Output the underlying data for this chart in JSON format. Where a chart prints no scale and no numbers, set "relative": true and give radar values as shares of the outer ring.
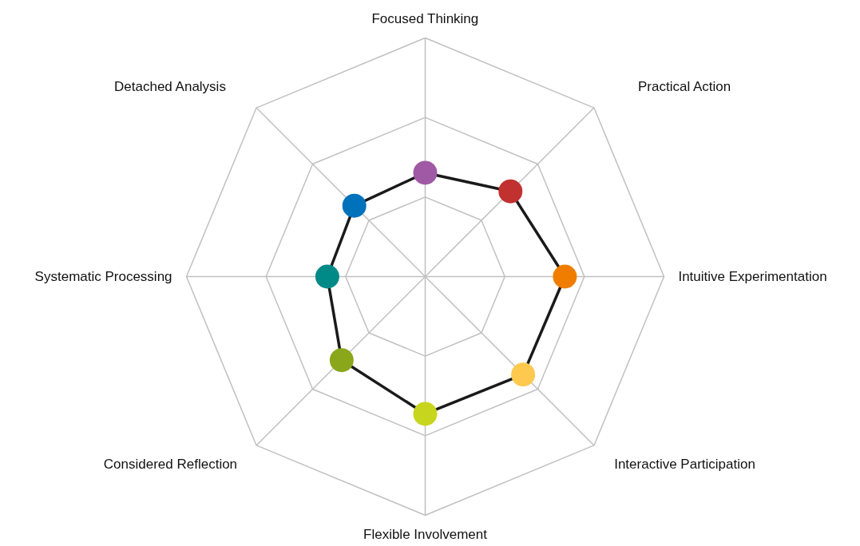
{
  "chart_data": {
    "type": "radar",
    "relative": true,
    "categories": [
      "Focused Thinking",
      "Practical Action",
      "Intuitive Experimentation",
      "Interactive Participation",
      "Flexible Involvement",
      "Considered Reflection",
      "Systematic Processing",
      "Detached Analysis"
    ],
    "series": [
      {
        "color": "#1a1a1a",
        "colors": [
          "#a05aa5",
          "#c0312f",
          "#f07d00",
          "#fec94e",
          "#c8d51e",
          "#8aa61a",
          "#008a87",
          "#0072bc"
        ],
        "values": [
          0.435,
          0.505,
          0.585,
          0.58,
          0.575,
          0.495,
          0.41,
          0.42
        ]
      }
    ],
    "marker": "circle",
    "grid": true
  }
}
